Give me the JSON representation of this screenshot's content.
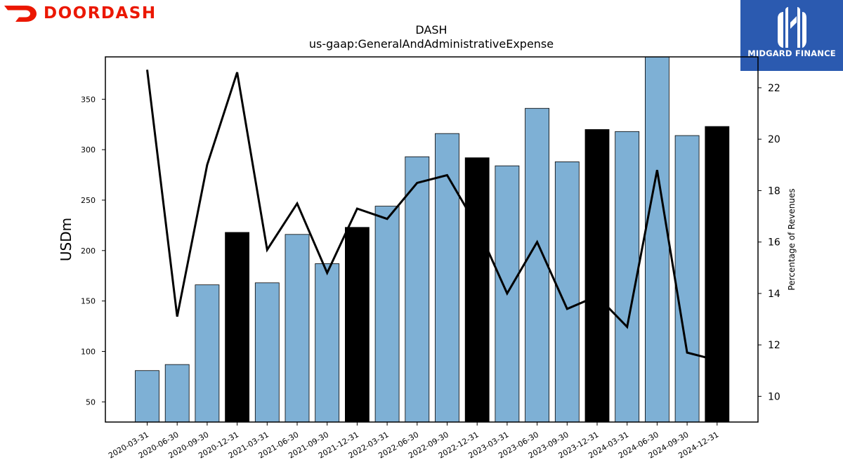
{
  "header": {
    "left_logo_text": "DOORDASH",
    "right_logo_text": "MIDGARD FINANCE"
  },
  "colors": {
    "bar_default": "#7eb0d5",
    "bar_highlight": "#000000",
    "line": "#000000",
    "doordash_red": "#eb1700",
    "midgard_blue": "#2b5ab0"
  },
  "chart_data": {
    "type": "bar",
    "title": "DASH",
    "subtitle": "us-gaap:GeneralAndAdministrativeExpense",
    "ylabel": "USDm",
    "y2label": "Percentage of Revenues",
    "ylim": [
      30,
      392
    ],
    "y2lim": [
      9.0,
      23.2
    ],
    "yticks": [
      50,
      100,
      150,
      200,
      250,
      300,
      350
    ],
    "y2ticks": [
      10,
      12,
      14,
      16,
      18,
      20,
      22
    ],
    "grid": false,
    "categories": [
      "2020-03-31",
      "2020-06-30",
      "2020-09-30",
      "2020-12-31",
      "2021-03-31",
      "2021-06-30",
      "2021-09-30",
      "2021-12-31",
      "2022-03-31",
      "2022-06-30",
      "2022-09-30",
      "2022-12-31",
      "2023-03-31",
      "2023-06-30",
      "2023-09-30",
      "2023-12-31",
      "2024-03-31",
      "2024-06-30",
      "2024-09-30",
      "2024-12-31"
    ],
    "series": [
      {
        "type": "bar",
        "axis": "left",
        "values": [
          81,
          87,
          166,
          218,
          168,
          216,
          187,
          223,
          244,
          293,
          316,
          292,
          284,
          341,
          288,
          320,
          318,
          392,
          314,
          323
        ],
        "highlight": [
          false,
          false,
          false,
          true,
          false,
          false,
          false,
          true,
          false,
          false,
          false,
          true,
          false,
          false,
          false,
          true,
          false,
          false,
          false,
          true
        ]
      },
      {
        "type": "line",
        "axis": "right",
        "values": [
          22.7,
          13.1,
          19.0,
          22.6,
          15.7,
          17.5,
          14.8,
          17.3,
          16.9,
          18.3,
          18.6,
          16.6,
          14.0,
          16.0,
          13.4,
          13.9,
          12.7,
          18.8,
          11.7,
          11.4
        ]
      }
    ]
  }
}
